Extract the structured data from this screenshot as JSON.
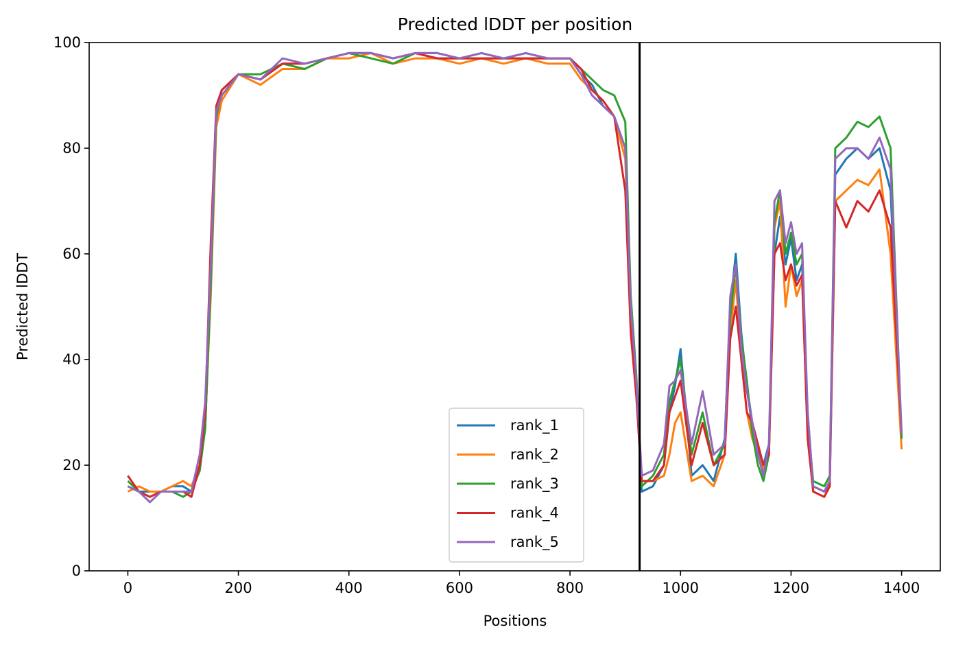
{
  "chart_data": {
    "type": "line",
    "title": "Predicted lDDT per position",
    "xlabel": "Positions",
    "ylabel": "Predicted lDDT",
    "xlim": [
      -70,
      1470
    ],
    "ylim": [
      0,
      100
    ],
    "x_ticks": [
      0,
      200,
      400,
      600,
      800,
      1000,
      1200,
      1400
    ],
    "y_ticks": [
      0,
      20,
      40,
      60,
      80,
      100
    ],
    "grid": false,
    "legend_position": "lower center",
    "vline_x": 926,
    "series": [
      {
        "name": "rank_1",
        "color": "#1f77b4",
        "x": [
          0,
          20,
          40,
          60,
          80,
          100,
          115,
          130,
          140,
          150,
          160,
          170,
          200,
          240,
          280,
          320,
          360,
          400,
          440,
          480,
          520,
          560,
          600,
          640,
          680,
          720,
          760,
          800,
          820,
          840,
          860,
          880,
          900,
          910,
          920,
          930,
          950,
          970,
          980,
          990,
          1000,
          1020,
          1040,
          1060,
          1080,
          1090,
          1100,
          1110,
          1120,
          1130,
          1140,
          1150,
          1160,
          1170,
          1180,
          1190,
          1200,
          1210,
          1220,
          1230,
          1240,
          1260,
          1270,
          1280,
          1300,
          1320,
          1340,
          1360,
          1380,
          1400
        ],
        "y": [
          16,
          15,
          15,
          15,
          16,
          16,
          15,
          19,
          27,
          55,
          85,
          90,
          94,
          93,
          96,
          96,
          97,
          98,
          98,
          97,
          98,
          98,
          97,
          98,
          97,
          98,
          97,
          97,
          94,
          92,
          88,
          86,
          80,
          50,
          35,
          15,
          16,
          20,
          30,
          35,
          42,
          18,
          20,
          17,
          25,
          50,
          60,
          45,
          35,
          28,
          23,
          20,
          24,
          60,
          67,
          58,
          63,
          55,
          58,
          30,
          16,
          15,
          16,
          75,
          78,
          80,
          78,
          80,
          72,
          25
        ]
      },
      {
        "name": "rank_2",
        "color": "#ff7f0e",
        "x": [
          0,
          20,
          40,
          60,
          80,
          100,
          115,
          130,
          140,
          150,
          160,
          170,
          200,
          240,
          280,
          320,
          360,
          400,
          440,
          480,
          520,
          560,
          600,
          640,
          680,
          720,
          760,
          800,
          820,
          840,
          860,
          880,
          900,
          910,
          920,
          930,
          950,
          970,
          980,
          990,
          1000,
          1020,
          1040,
          1060,
          1080,
          1090,
          1100,
          1110,
          1120,
          1130,
          1140,
          1150,
          1160,
          1170,
          1180,
          1190,
          1200,
          1210,
          1220,
          1230,
          1240,
          1260,
          1270,
          1280,
          1300,
          1320,
          1340,
          1360,
          1380,
          1400
        ],
        "y": [
          15,
          16,
          15,
          15,
          16,
          17,
          16,
          20,
          28,
          52,
          84,
          89,
          94,
          92,
          95,
          95,
          97,
          97,
          98,
          96,
          97,
          97,
          96,
          97,
          96,
          97,
          96,
          96,
          93,
          91,
          89,
          86,
          78,
          48,
          36,
          17,
          17,
          18,
          22,
          28,
          30,
          17,
          18,
          16,
          22,
          45,
          55,
          40,
          30,
          25,
          22,
          19,
          22,
          65,
          70,
          50,
          58,
          52,
          55,
          26,
          15,
          14,
          16,
          70,
          72,
          74,
          73,
          76,
          60,
          23
        ]
      },
      {
        "name": "rank_3",
        "color": "#2ca02c",
        "x": [
          0,
          20,
          40,
          60,
          80,
          100,
          115,
          130,
          140,
          150,
          160,
          170,
          200,
          240,
          280,
          320,
          360,
          400,
          440,
          480,
          520,
          560,
          600,
          640,
          680,
          720,
          760,
          800,
          820,
          840,
          860,
          880,
          900,
          910,
          920,
          930,
          950,
          970,
          980,
          990,
          1000,
          1020,
          1040,
          1060,
          1080,
          1090,
          1100,
          1110,
          1120,
          1130,
          1140,
          1150,
          1160,
          1170,
          1180,
          1190,
          1200,
          1210,
          1220,
          1230,
          1240,
          1260,
          1270,
          1280,
          1300,
          1320,
          1340,
          1360,
          1380,
          1400
        ],
        "y": [
          17,
          15,
          14,
          15,
          15,
          14,
          15,
          19,
          27,
          54,
          86,
          91,
          94,
          94,
          96,
          95,
          97,
          98,
          97,
          96,
          98,
          97,
          97,
          97,
          97,
          97,
          97,
          97,
          95,
          93,
          91,
          90,
          85,
          52,
          37,
          16,
          18,
          22,
          32,
          36,
          40,
          22,
          30,
          20,
          24,
          48,
          58,
          44,
          36,
          26,
          20,
          17,
          22,
          66,
          72,
          60,
          64,
          58,
          60,
          28,
          17,
          16,
          18,
          80,
          82,
          85,
          84,
          86,
          80,
          25
        ]
      },
      {
        "name": "rank_4",
        "color": "#d62728",
        "x": [
          0,
          20,
          40,
          60,
          80,
          100,
          115,
          130,
          140,
          150,
          160,
          170,
          200,
          240,
          280,
          320,
          360,
          400,
          440,
          480,
          520,
          560,
          600,
          640,
          680,
          720,
          760,
          800,
          820,
          840,
          860,
          880,
          900,
          910,
          920,
          930,
          950,
          970,
          980,
          990,
          1000,
          1020,
          1040,
          1060,
          1080,
          1090,
          1100,
          1110,
          1120,
          1130,
          1140,
          1150,
          1160,
          1170,
          1180,
          1190,
          1200,
          1210,
          1220,
          1230,
          1240,
          1260,
          1270,
          1280,
          1300,
          1320,
          1340,
          1360,
          1380,
          1400
        ],
        "y": [
          18,
          15,
          14,
          15,
          15,
          15,
          14,
          20,
          30,
          62,
          88,
          91,
          94,
          93,
          96,
          96,
          97,
          98,
          98,
          97,
          98,
          97,
          97,
          97,
          97,
          97,
          97,
          97,
          95,
          91,
          89,
          86,
          72,
          45,
          33,
          17,
          17,
          20,
          30,
          33,
          36,
          20,
          28,
          20,
          22,
          44,
          50,
          40,
          30,
          28,
          24,
          20,
          22,
          60,
          62,
          55,
          58,
          54,
          56,
          25,
          15,
          14,
          16,
          70,
          65,
          70,
          68,
          72,
          65,
          26
        ]
      },
      {
        "name": "rank_5",
        "color": "#9467bd",
        "x": [
          0,
          20,
          40,
          60,
          80,
          100,
          115,
          130,
          140,
          150,
          160,
          170,
          200,
          240,
          280,
          320,
          360,
          400,
          440,
          480,
          520,
          560,
          600,
          640,
          680,
          720,
          760,
          800,
          820,
          840,
          860,
          880,
          900,
          910,
          920,
          930,
          950,
          970,
          980,
          990,
          1000,
          1020,
          1040,
          1060,
          1080,
          1090,
          1100,
          1110,
          1120,
          1130,
          1140,
          1150,
          1160,
          1170,
          1180,
          1190,
          1200,
          1210,
          1220,
          1230,
          1240,
          1260,
          1270,
          1280,
          1300,
          1320,
          1340,
          1360,
          1380,
          1400
        ],
        "y": [
          16,
          15,
          13,
          15,
          15,
          15,
          15,
          22,
          32,
          58,
          87,
          90,
          94,
          93,
          97,
          96,
          97,
          98,
          98,
          97,
          98,
          98,
          97,
          98,
          97,
          98,
          97,
          97,
          94,
          90,
          88,
          86,
          80,
          50,
          36,
          18,
          19,
          24,
          35,
          36,
          38,
          24,
          34,
          22,
          24,
          52,
          58,
          42,
          34,
          28,
          22,
          18,
          24,
          70,
          72,
          62,
          66,
          60,
          62,
          30,
          16,
          15,
          17,
          78,
          80,
          80,
          78,
          82,
          76,
          26
        ]
      }
    ]
  }
}
